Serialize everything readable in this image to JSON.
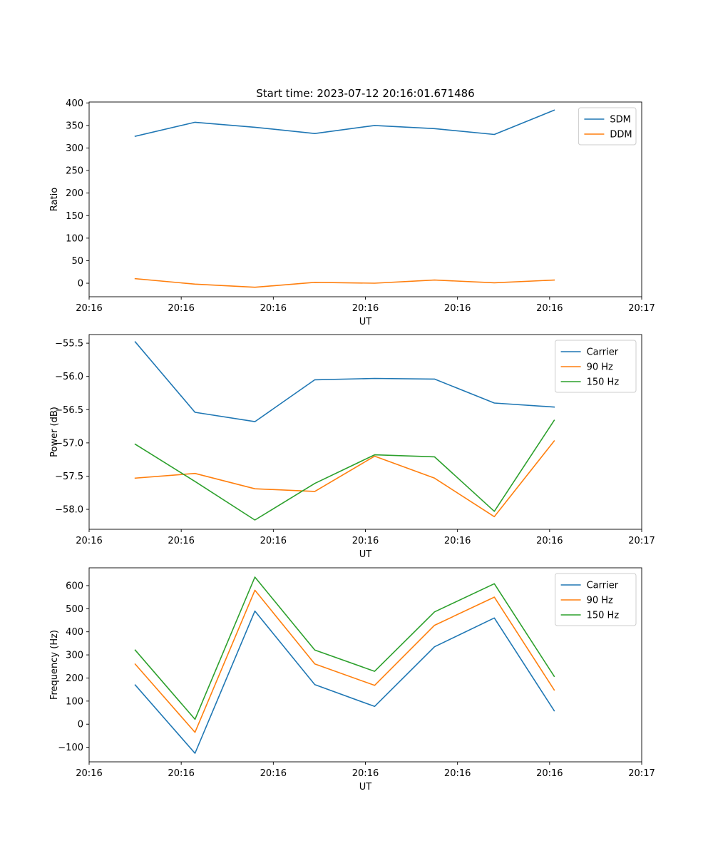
{
  "figure_title": "Start time: 2023-07-12 20:16:01.671486",
  "colors": {
    "blue": "#1f77b4",
    "orange": "#ff7f0e",
    "green": "#2ca02c",
    "axis": "#000000",
    "legend_border": "#cccccc"
  },
  "chart_data": [
    {
      "type": "line",
      "id": "ratio",
      "xlabel": "UT",
      "ylabel": "Ratio",
      "xlim": [
        0,
        12
      ],
      "ylim": [
        -30,
        402
      ],
      "x": [
        1,
        2.3,
        3.6,
        4.9,
        6.2,
        7.5,
        8.8,
        10.1
      ],
      "x_ticks": [
        0,
        2,
        4,
        6,
        8,
        10,
        12
      ],
      "x_tick_labels": [
        "20:16",
        "20:16",
        "20:16",
        "20:16",
        "20:16",
        "20:16",
        "20:17"
      ],
      "y_ticks": [
        0,
        50,
        100,
        150,
        200,
        250,
        300,
        350,
        400
      ],
      "y_tick_labels": [
        "0",
        "50",
        "100",
        "150",
        "200",
        "250",
        "300",
        "350",
        "400"
      ],
      "legend_position": "top-right",
      "series": [
        {
          "name": "SDM",
          "color": "#1f77b4",
          "values": [
            326,
            357,
            346,
            332,
            350,
            343,
            330,
            384
          ]
        },
        {
          "name": "DDM",
          "color": "#ff7f0e",
          "values": [
            10,
            -2,
            -9,
            2,
            0,
            7,
            1,
            7
          ]
        }
      ]
    },
    {
      "type": "line",
      "id": "power",
      "xlabel": "UT",
      "ylabel": "Power (dB)",
      "xlim": [
        0,
        12
      ],
      "ylim": [
        -58.3,
        -55.37
      ],
      "x": [
        1,
        2.3,
        3.6,
        4.9,
        6.2,
        7.5,
        8.8,
        10.1
      ],
      "x_ticks": [
        0,
        2,
        4,
        6,
        8,
        10,
        12
      ],
      "x_tick_labels": [
        "20:16",
        "20:16",
        "20:16",
        "20:16",
        "20:16",
        "20:16",
        "20:17"
      ],
      "y_ticks": [
        -58.0,
        -57.5,
        -57.0,
        -56.5,
        -56.0,
        -55.5
      ],
      "y_tick_labels": [
        "−58.0",
        "−57.5",
        "−57.0",
        "−56.5",
        "−56.0",
        "−55.5"
      ],
      "legend_position": "top-right",
      "series": [
        {
          "name": "Carrier",
          "color": "#1f77b4",
          "values": [
            -55.48,
            -56.54,
            -56.68,
            -56.05,
            -56.03,
            -56.04,
            -56.4,
            -56.46
          ]
        },
        {
          "name": "90 Hz",
          "color": "#ff7f0e",
          "values": [
            -57.53,
            -57.46,
            -57.69,
            -57.73,
            -57.2,
            -57.53,
            -58.11,
            -56.97
          ]
        },
        {
          "name": "150 Hz",
          "color": "#2ca02c",
          "values": [
            -57.02,
            -57.58,
            -58.16,
            -57.61,
            -57.18,
            -57.21,
            -58.03,
            -56.66
          ]
        }
      ]
    },
    {
      "type": "line",
      "id": "frequency",
      "xlabel": "UT",
      "ylabel": "Frequency (Hz)",
      "xlim": [
        0,
        12
      ],
      "ylim": [
        -163,
        677
      ],
      "x": [
        1,
        2.3,
        3.6,
        4.9,
        6.2,
        7.5,
        8.8,
        10.1
      ],
      "x_ticks": [
        0,
        2,
        4,
        6,
        8,
        10,
        12
      ],
      "x_tick_labels": [
        "20:16",
        "20:16",
        "20:16",
        "20:16",
        "20:16",
        "20:16",
        "20:17"
      ],
      "y_ticks": [
        -100,
        0,
        100,
        200,
        300,
        400,
        500,
        600
      ],
      "y_tick_labels": [
        "−100",
        "0",
        "100",
        "200",
        "300",
        "400",
        "500",
        "600"
      ],
      "legend_position": "top-right",
      "series": [
        {
          "name": "Carrier",
          "color": "#1f77b4",
          "values": [
            170,
            -126,
            490,
            171,
            77,
            335,
            460,
            58
          ]
        },
        {
          "name": "90 Hz",
          "color": "#ff7f0e",
          "values": [
            260,
            -35,
            580,
            261,
            168,
            428,
            550,
            148
          ]
        },
        {
          "name": "150 Hz",
          "color": "#2ca02c",
          "values": [
            321,
            21,
            637,
            321,
            229,
            486,
            608,
            207
          ]
        }
      ]
    }
  ]
}
